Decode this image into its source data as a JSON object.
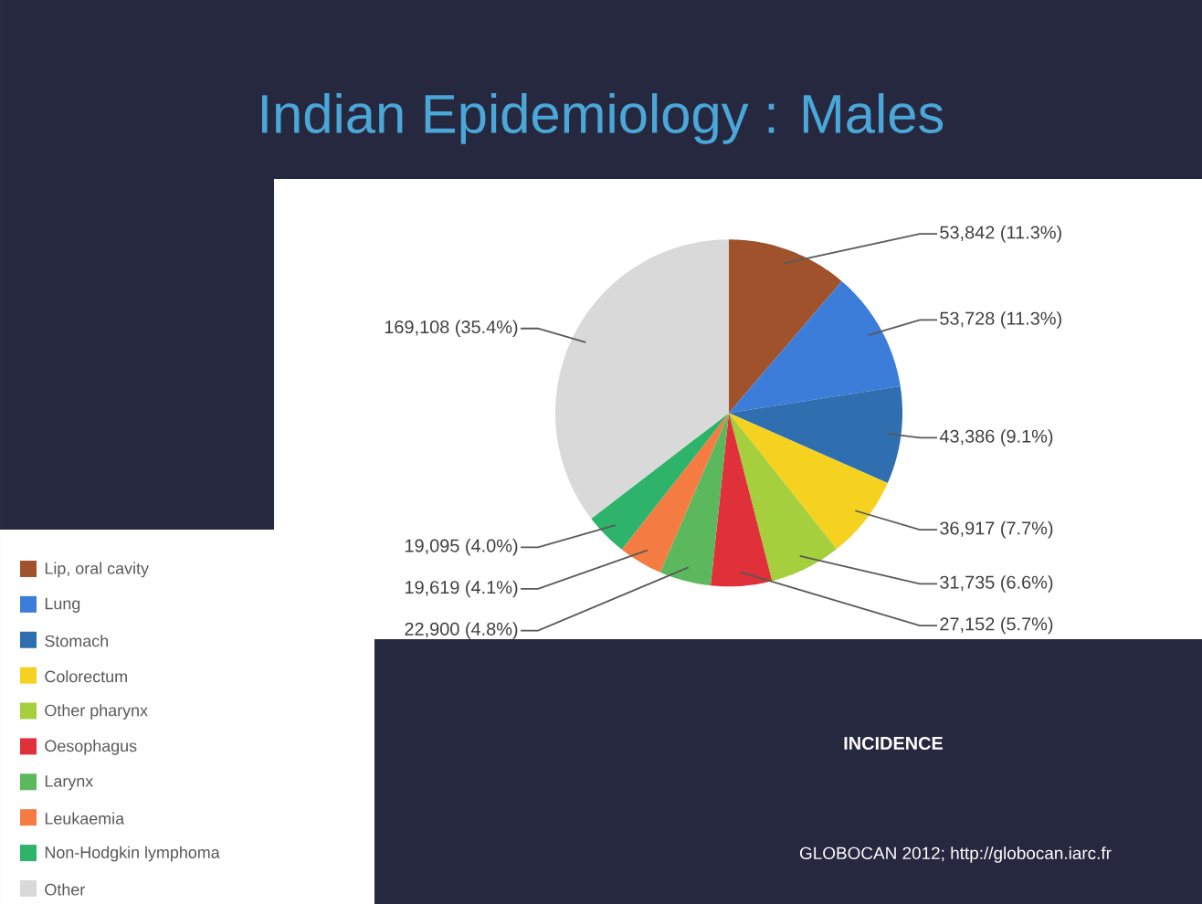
{
  "chart_data": {
    "type": "pie",
    "title": "Indian Epidemiology : Males",
    "categories": [
      "Lip, oral cavity",
      "Lung",
      "Stomach",
      "Colorectum",
      "Other pharynx",
      "Oesophagus",
      "Larynx",
      "Leukaemia",
      "Non-Hodgkin lymphoma",
      "Other"
    ],
    "values": [
      53842,
      53728,
      43386,
      36917,
      31735,
      27152,
      22900,
      19619,
      19095,
      169108
    ],
    "value_labels": [
      "53,842 (11.3%)",
      "53,728 (11.3%)",
      "43,386 (9.1%)",
      "36,917 (7.7%)",
      "31,735 (6.6%)",
      "27,152 (5.7%)",
      "22,900 (4.8%)",
      "19,619 (4.1%)",
      "19,095 (4.0%)",
      "169,108 (35.4%)"
    ],
    "colors": [
      "#a0522d",
      "#3b7dd8",
      "#2f6fb0",
      "#f5d21f",
      "#a5cf3c",
      "#e0303a",
      "#5cb85c",
      "#f47b42",
      "#2db36a",
      "#d9d9d9"
    ],
    "legend": "bottom left",
    "annotations": [
      "INCIDENCE",
      "GLOBOCAN 2012; http://globocan.iarc.fr"
    ]
  }
}
